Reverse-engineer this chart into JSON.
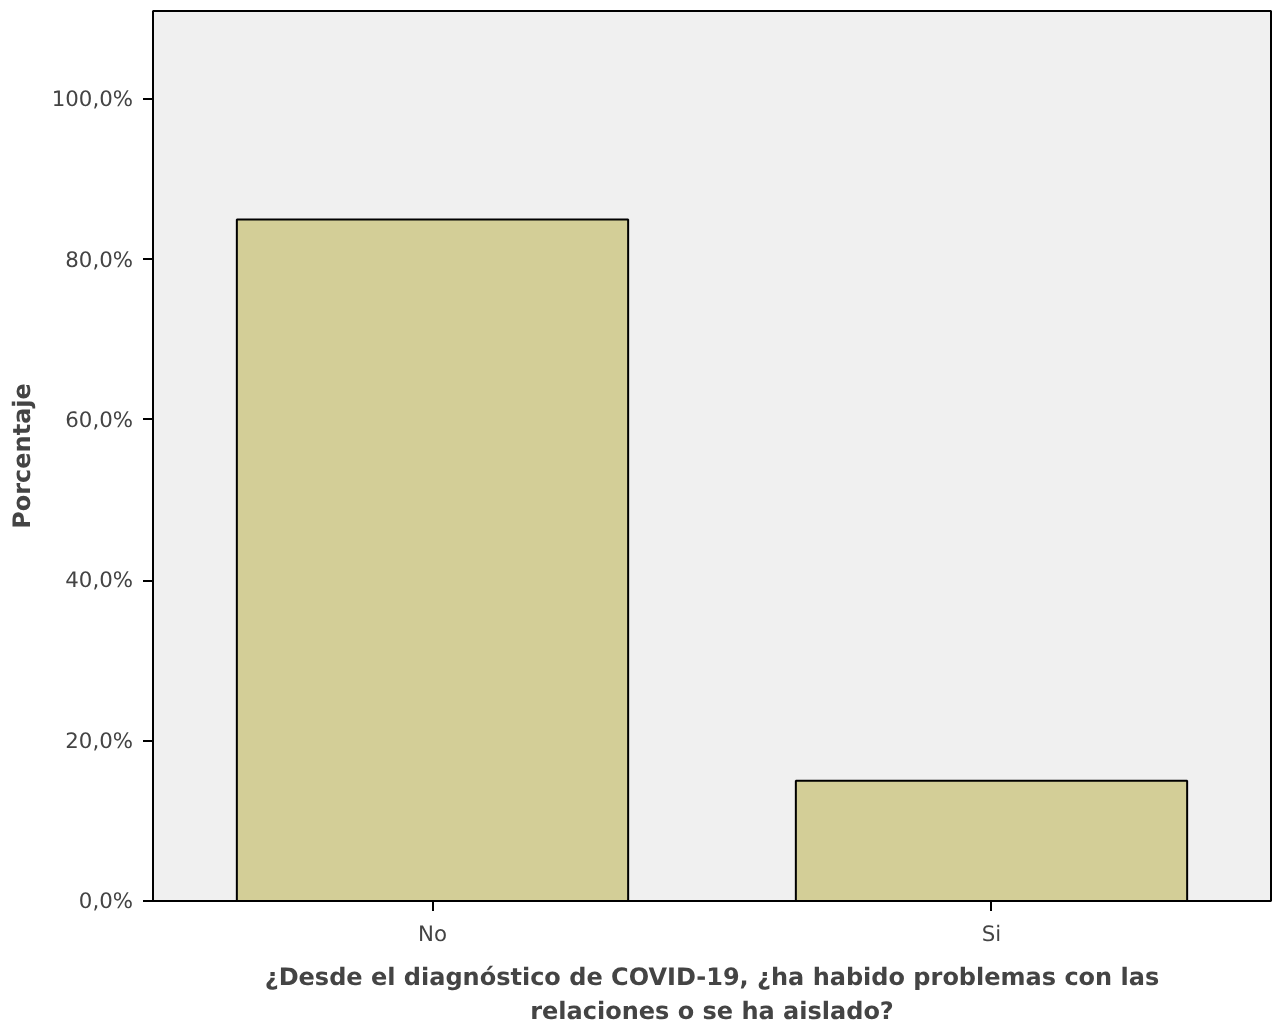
{
  "chart_data": {
    "type": "bar",
    "xlabel": "¿Desde el diagnóstico de COVID-19, ¿ha habido problemas con las relaciones o se ha aislado?",
    "ylabel": "Porcentaje",
    "categories": [
      "No",
      "Si"
    ],
    "values": [
      85,
      15
    ],
    "color": "#d3ce97",
    "ylim": [
      0,
      111
    ],
    "yticks": [
      {
        "value": 0,
        "label": "0,0%"
      },
      {
        "value": 20,
        "label": "20,0%"
      },
      {
        "value": 40,
        "label": "40,0%"
      },
      {
        "value": 60,
        "label": "60,0%"
      },
      {
        "value": 80,
        "label": "80,0%"
      },
      {
        "value": 100,
        "label": "100,0%"
      }
    ],
    "grid": false
  }
}
